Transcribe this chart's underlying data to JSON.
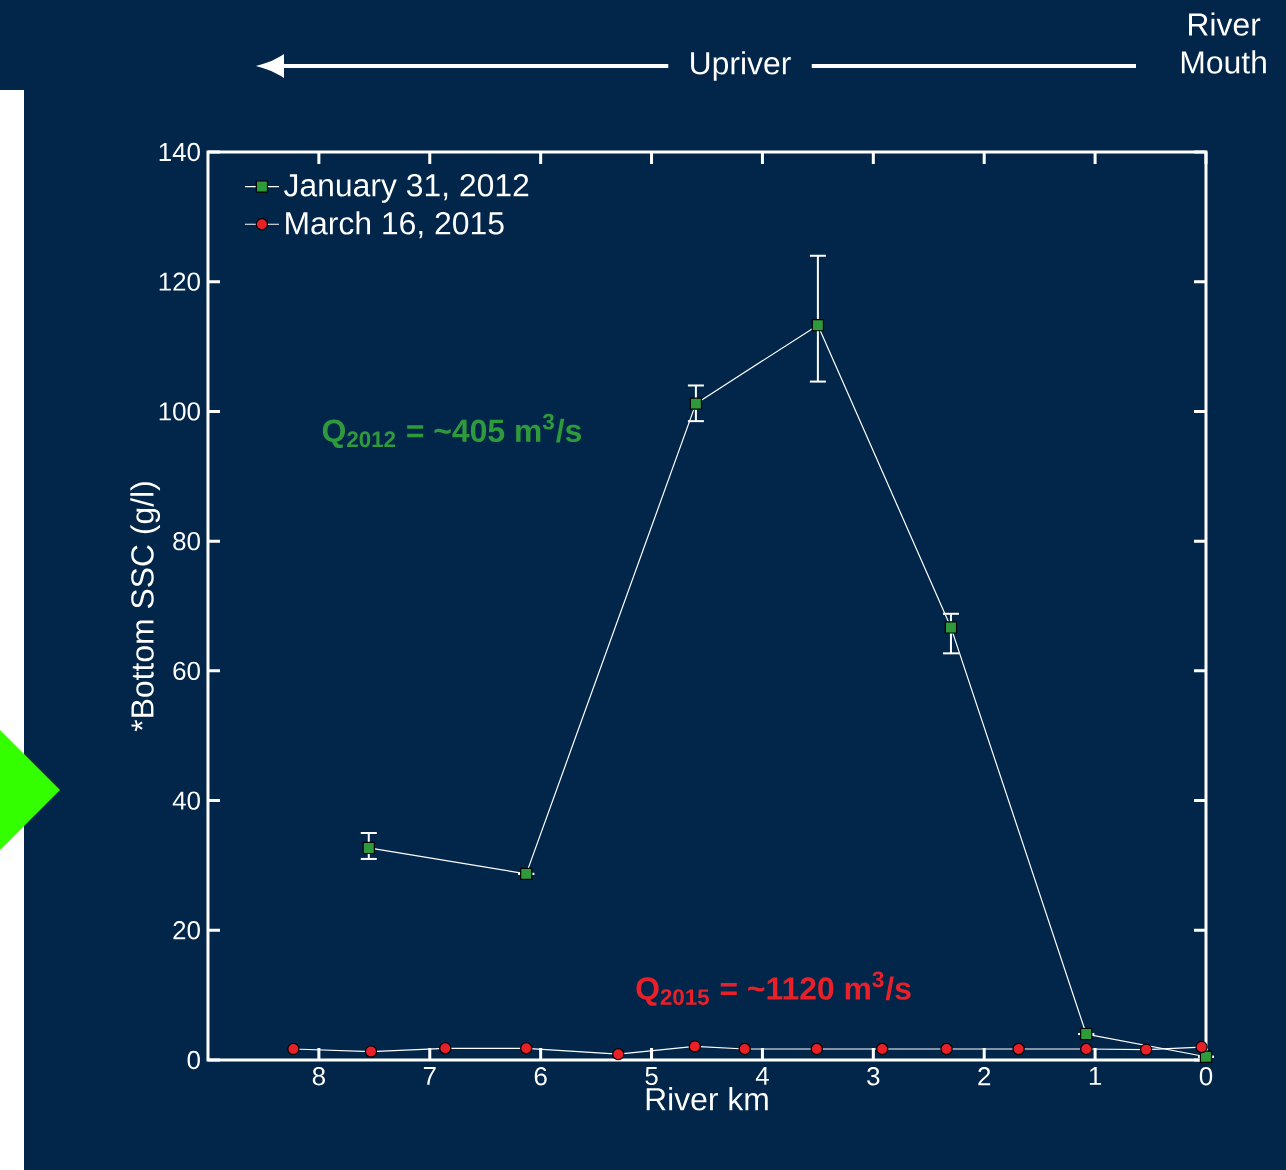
{
  "chart_data": {
    "type": "line",
    "xlabel": "River km",
    "ylabel": "*Bottom SSC (g/l)",
    "xlim": [
      9,
      0
    ],
    "xticks": [
      8,
      7,
      6,
      5,
      4,
      3,
      2,
      1,
      0
    ],
    "ylim": [
      0,
      140
    ],
    "yticks": [
      0,
      20,
      40,
      60,
      80,
      100,
      120,
      140
    ],
    "grid": false,
    "legend": "top left",
    "annotations": [
      "Q$_{2012}$ = ~405 m$^{3}$/s",
      "Q$_{2015}$ = ~1120 m$^{3}$/s",
      "Upriver",
      "River Mouth"
    ],
    "series": [
      {
        "name": "January 31, 2012",
        "color": "#2e9a3c",
        "marker": "square",
        "x": [
          7.55,
          6.13,
          4.6,
          3.5,
          2.3,
          1.08,
          0.54,
          0
        ],
        "values": [
          32.7,
          28.7,
          101.2,
          113.3,
          66.7,
          4,
          null,
          0.5
        ],
        "errors": [
          [
            31,
            35
          ],
          null,
          [
            98.5,
            104
          ],
          [
            104.6,
            124
          ],
          [
            62.7,
            68.8
          ],
          null,
          null,
          null
        ]
      },
      {
        "name": "March 16, 2015",
        "color": "#e8202a",
        "marker": "circle",
        "x": [
          8.23,
          7.53,
          6.86,
          6.13,
          5.3,
          4.61,
          4.16,
          3.51,
          2.92,
          2.34,
          1.69,
          1.08,
          0.54,
          0.04
        ],
        "values": [
          1.7,
          1.3,
          1.8,
          1.8,
          0.9,
          2.1,
          1.7,
          1.7,
          1.7,
          1.7,
          1.7,
          1.7,
          1.6,
          2
        ]
      }
    ]
  }
}
